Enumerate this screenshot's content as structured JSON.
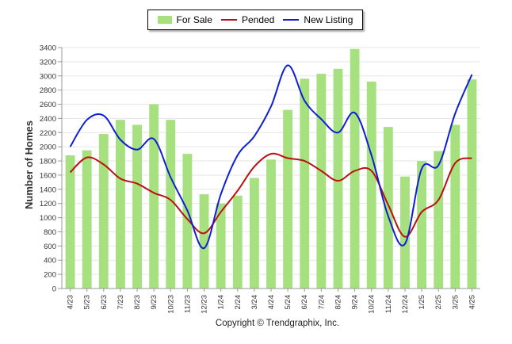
{
  "chart_data": {
    "type": "bar",
    "ylabel": "Number of Homes",
    "ylim": [
      0,
      3400
    ],
    "ytick_step": 200,
    "grid": true,
    "legend_placement": "top-center",
    "categories": [
      "4/23",
      "5/23",
      "6/23",
      "7/23",
      "8/23",
      "9/23",
      "10/23",
      "11/23",
      "12/23",
      "1/24",
      "2/24",
      "3/24",
      "4/24",
      "5/24",
      "6/24",
      "7/24",
      "8/24",
      "9/24",
      "10/24",
      "11/24",
      "12/24",
      "1/25",
      "2/25",
      "3/25",
      "4/25"
    ],
    "series": [
      {
        "name": "For Sale",
        "kind": "bar",
        "color": "#a6e07f",
        "values": [
          1880,
          1950,
          2180,
          2380,
          2310,
          2600,
          2380,
          1900,
          1330,
          1200,
          1310,
          1560,
          1820,
          2520,
          2960,
          3030,
          3100,
          3380,
          2920,
          2280,
          1580,
          1800,
          1940,
          2310,
          2950
        ]
      },
      {
        "name": "Pended",
        "kind": "line",
        "color": "#bb1111",
        "values": [
          1640,
          1850,
          1750,
          1550,
          1480,
          1350,
          1250,
          980,
          780,
          1080,
          1380,
          1720,
          1900,
          1840,
          1800,
          1660,
          1520,
          1660,
          1660,
          1180,
          730,
          1080,
          1250,
          1770,
          1840
        ]
      },
      {
        "name": "New Listing",
        "kind": "line",
        "color": "#0d1fd6",
        "values": [
          2000,
          2380,
          2440,
          2100,
          1960,
          2110,
          1570,
          1100,
          570,
          1330,
          1880,
          2150,
          2570,
          3150,
          2650,
          2390,
          2200,
          2480,
          1880,
          1020,
          630,
          1690,
          1740,
          2470,
          3020
        ]
      }
    ]
  },
  "copyright": "Copyright © Trendgraphix, Inc."
}
